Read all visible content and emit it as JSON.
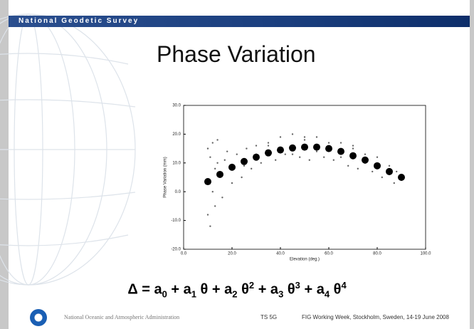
{
  "slide": {
    "agency": "National Geodetic Survey",
    "title": "Phase Variation",
    "equation": [
      {
        "text": "Δ = a"
      },
      {
        "sub": "0"
      },
      {
        "text": " + a"
      },
      {
        "sub": "1"
      },
      {
        "text": " θ + a"
      },
      {
        "sub": "2"
      },
      {
        "text": " θ"
      },
      {
        "sup": "2"
      },
      {
        "text": " + a"
      },
      {
        "sub": "3"
      },
      {
        "text": " θ"
      },
      {
        "sup": "3"
      },
      {
        "text": " + a"
      },
      {
        "sub": "4"
      },
      {
        "text": " θ"
      },
      {
        "sup": "4"
      }
    ],
    "footer": {
      "org": "National Oceanic and Atmospheric Administration",
      "session": "TS 5G",
      "event": "FIG Working Week, Stockholm, Sweden, 14-19 June 2008"
    }
  },
  "chart_data": {
    "type": "scatter",
    "x_label": "Elevation (deg.)",
    "y_label": "Phase Variation (mm)",
    "xlim": [
      0,
      100
    ],
    "xticks": [
      {
        "value": 0,
        "label": "0.0"
      },
      {
        "value": 20,
        "label": "20.0"
      },
      {
        "value": 40,
        "label": "40.0"
      },
      {
        "value": 60,
        "label": "60.0"
      },
      {
        "value": 80,
        "label": "80.0"
      },
      {
        "value": 100,
        "label": "100.0"
      }
    ],
    "ylim": [
      -20,
      30
    ],
    "yticks": [
      {
        "value": -20,
        "label": "-20.0"
      },
      {
        "value": -10,
        "label": "-10.0"
      },
      {
        "value": 0,
        "label": "0.0"
      },
      {
        "value": 10,
        "label": "10.0"
      },
      {
        "value": 20,
        "label": "20.0"
      },
      {
        "value": 30,
        "label": "30.0"
      }
    ],
    "series": [
      {
        "color": "#666666",
        "x": [
          10,
          10,
          10,
          11,
          11,
          12,
          12,
          13,
          13,
          14,
          15,
          16,
          18,
          20,
          22,
          24,
          26,
          28,
          30,
          32,
          35,
          38,
          40,
          42,
          45,
          48,
          50,
          52,
          55,
          58,
          60,
          62,
          65,
          68,
          70,
          72,
          75,
          78,
          80,
          82,
          85,
          87,
          88,
          90,
          14,
          17,
          25,
          35,
          45,
          55,
          65,
          75,
          85,
          30,
          50,
          70
        ],
        "values": [
          -8,
          15,
          3,
          -12,
          12,
          0,
          17,
          -5,
          8,
          18,
          6,
          -2,
          14,
          3,
          13,
          5,
          15,
          8,
          16,
          10,
          17,
          11,
          19,
          13,
          20,
          12,
          19,
          11,
          19,
          12,
          17,
          11,
          17,
          9,
          16,
          8,
          13,
          7,
          12,
          5,
          9,
          3,
          7,
          4,
          10,
          11,
          9,
          16,
          13,
          14,
          12,
          10,
          6,
          13,
          18,
          15
        ]
      },
      {
        "color": "#000000",
        "x": [
          10,
          15,
          20,
          25,
          30,
          35,
          40,
          45,
          50,
          55,
          60,
          65,
          70,
          75,
          80,
          85,
          90
        ],
        "values": [
          3.5,
          6,
          8.5,
          10.5,
          12,
          13.5,
          14.5,
          15.2,
          15.5,
          15.5,
          15,
          14,
          12.5,
          11,
          9,
          7,
          5
        ]
      }
    ]
  }
}
